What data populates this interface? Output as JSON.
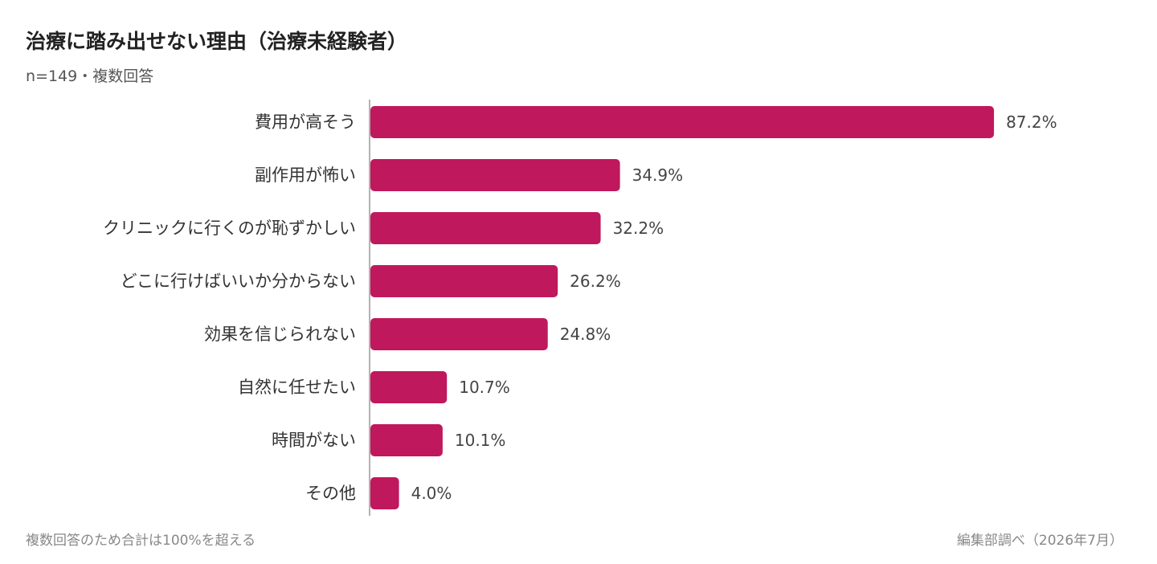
{
  "title": "治療に踏み出せない理由（治療未経験者）",
  "subtitle": "n=149・複数回答",
  "footnote": "複数回答のため合計は100%を超える",
  "source": "編集部調べ（2026年7月）",
  "colors": {
    "bar": "#C0185C",
    "axis": "#999999",
    "label": "#333333",
    "value": "#444444"
  },
  "chart_data": {
    "type": "bar",
    "orientation": "horizontal",
    "categories": [
      "費用が高そう",
      "副作用が怖い",
      "クリニックに行くのが恥ずかしい",
      "どこに行けばいいか分からない",
      "効果を信じられない",
      "自然に任せたい",
      "時間がない",
      "その他"
    ],
    "values": [
      87.2,
      34.9,
      32.2,
      26.2,
      24.8,
      10.7,
      10.1,
      4.0
    ],
    "value_labels": [
      "87.2%",
      "34.9%",
      "32.2%",
      "26.2%",
      "24.8%",
      "10.7%",
      "10.1%",
      "4.0%"
    ],
    "unit": "%",
    "xlim": [
      0,
      100
    ],
    "grid": false,
    "legend": "none"
  }
}
